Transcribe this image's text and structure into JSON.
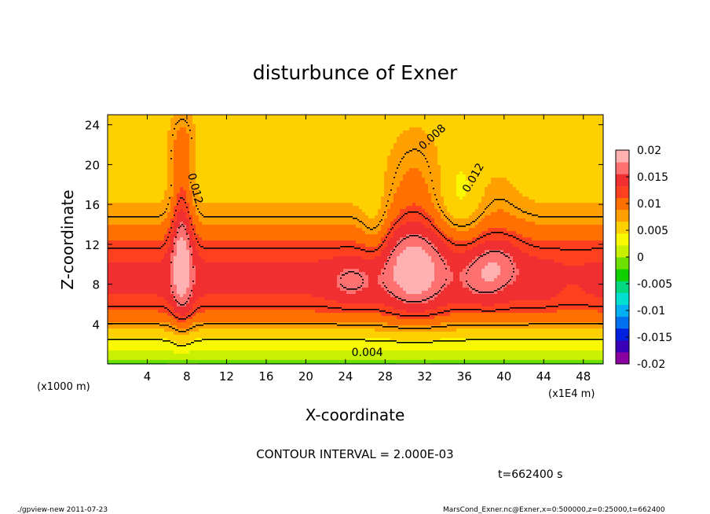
{
  "chart_data": {
    "type": "heatmap",
    "title": "disturbunce of Exner",
    "xlabel": "X-coordinate",
    "ylabel": "Z-coordinate",
    "x_unit_left": "(x1000 m)",
    "x_unit_right": "(x1E4 m)",
    "x_ticks": [
      "4",
      "8",
      "12",
      "16",
      "20",
      "24",
      "28",
      "32",
      "36",
      "40",
      "44",
      "48"
    ],
    "y_ticks": [
      "4",
      "8",
      "12",
      "16",
      "20",
      "24"
    ],
    "xlim": [
      0,
      50
    ],
    "ylim": [
      0,
      25
    ],
    "colorbar": {
      "labels": [
        "0.02",
        "0.015",
        "0.01",
        "0.005",
        "0",
        "-0.005",
        "-0.01",
        "-0.015",
        "-0.02"
      ],
      "range": [
        -0.02,
        0.02
      ],
      "colors": [
        "#8a00a0",
        "#3a00b8",
        "#0020e0",
        "#0070f0",
        "#00b0f0",
        "#00e0d0",
        "#00d880",
        "#10d000",
        "#6ee000",
        "#c8f000",
        "#f8f800",
        "#ffd000",
        "#ffa000",
        "#ff7000",
        "#ff4020",
        "#f03030",
        "#ff7070",
        "#ffb0b0"
      ]
    },
    "contour_labels": [
      "0.008",
      "0.012",
      "0.012",
      "0.004"
    ],
    "contour_interval_text": "CONTOUR INTERVAL = 2.000E-03",
    "time_text": "t=662400 s"
  },
  "footer": {
    "left": "./gpview-new   2011-07-23",
    "right": "MarsCond_Exner.nc@Exner,x=0:500000,z=0:25000,t=662400"
  }
}
